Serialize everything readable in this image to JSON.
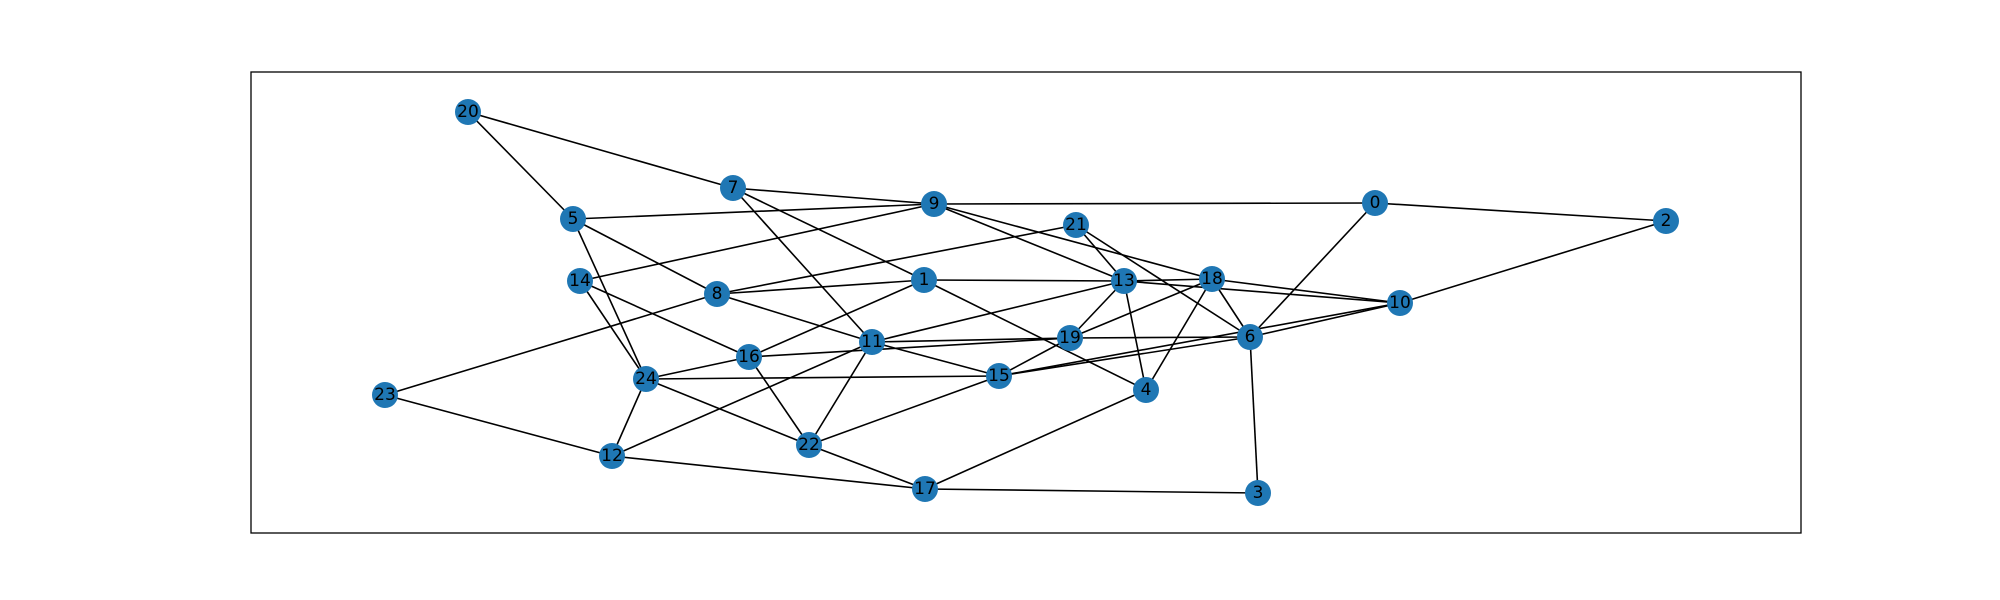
{
  "graph": {
    "node_color": "#1f77b4",
    "edge_color": "#000000",
    "nodes": [
      {
        "id": "0"
      },
      {
        "id": "1"
      },
      {
        "id": "2"
      },
      {
        "id": "3"
      },
      {
        "id": "4"
      },
      {
        "id": "5"
      },
      {
        "id": "6"
      },
      {
        "id": "7"
      },
      {
        "id": "8"
      },
      {
        "id": "9"
      },
      {
        "id": "10"
      },
      {
        "id": "11"
      },
      {
        "id": "12"
      },
      {
        "id": "13"
      },
      {
        "id": "14"
      },
      {
        "id": "15"
      },
      {
        "id": "16"
      },
      {
        "id": "17"
      },
      {
        "id": "18"
      },
      {
        "id": "19"
      },
      {
        "id": "20"
      },
      {
        "id": "21"
      },
      {
        "id": "22"
      },
      {
        "id": "23"
      },
      {
        "id": "24"
      }
    ],
    "edges": [
      [
        "20",
        "7"
      ],
      [
        "20",
        "5"
      ],
      [
        "7",
        "9"
      ],
      [
        "7",
        "1"
      ],
      [
        "7",
        "11"
      ],
      [
        "9",
        "5"
      ],
      [
        "9",
        "0"
      ],
      [
        "9",
        "14"
      ],
      [
        "9",
        "13"
      ],
      [
        "9",
        "18"
      ],
      [
        "0",
        "2"
      ],
      [
        "0",
        "6"
      ],
      [
        "2",
        "10"
      ],
      [
        "5",
        "8"
      ],
      [
        "5",
        "24"
      ],
      [
        "14",
        "24"
      ],
      [
        "14",
        "16"
      ],
      [
        "21",
        "8"
      ],
      [
        "21",
        "13"
      ],
      [
        "21",
        "6"
      ],
      [
        "8",
        "1"
      ],
      [
        "8",
        "11"
      ],
      [
        "8",
        "23"
      ],
      [
        "1",
        "13"
      ],
      [
        "1",
        "16"
      ],
      [
        "1",
        "4"
      ],
      [
        "13",
        "18"
      ],
      [
        "13",
        "10"
      ],
      [
        "13",
        "19"
      ],
      [
        "13",
        "4"
      ],
      [
        "13",
        "11"
      ],
      [
        "18",
        "10"
      ],
      [
        "18",
        "6"
      ],
      [
        "18",
        "4"
      ],
      [
        "18",
        "19"
      ],
      [
        "10",
        "6"
      ],
      [
        "10",
        "15"
      ],
      [
        "11",
        "19"
      ],
      [
        "11",
        "15"
      ],
      [
        "11",
        "22"
      ],
      [
        "11",
        "12"
      ],
      [
        "19",
        "6"
      ],
      [
        "19",
        "15"
      ],
      [
        "19",
        "16"
      ],
      [
        "6",
        "15"
      ],
      [
        "6",
        "3"
      ],
      [
        "16",
        "24"
      ],
      [
        "16",
        "22"
      ],
      [
        "24",
        "15"
      ],
      [
        "24",
        "22"
      ],
      [
        "24",
        "12"
      ],
      [
        "15",
        "22"
      ],
      [
        "4",
        "17"
      ],
      [
        "23",
        "12"
      ],
      [
        "12",
        "17"
      ],
      [
        "22",
        "17"
      ],
      [
        "17",
        "3"
      ]
    ]
  }
}
